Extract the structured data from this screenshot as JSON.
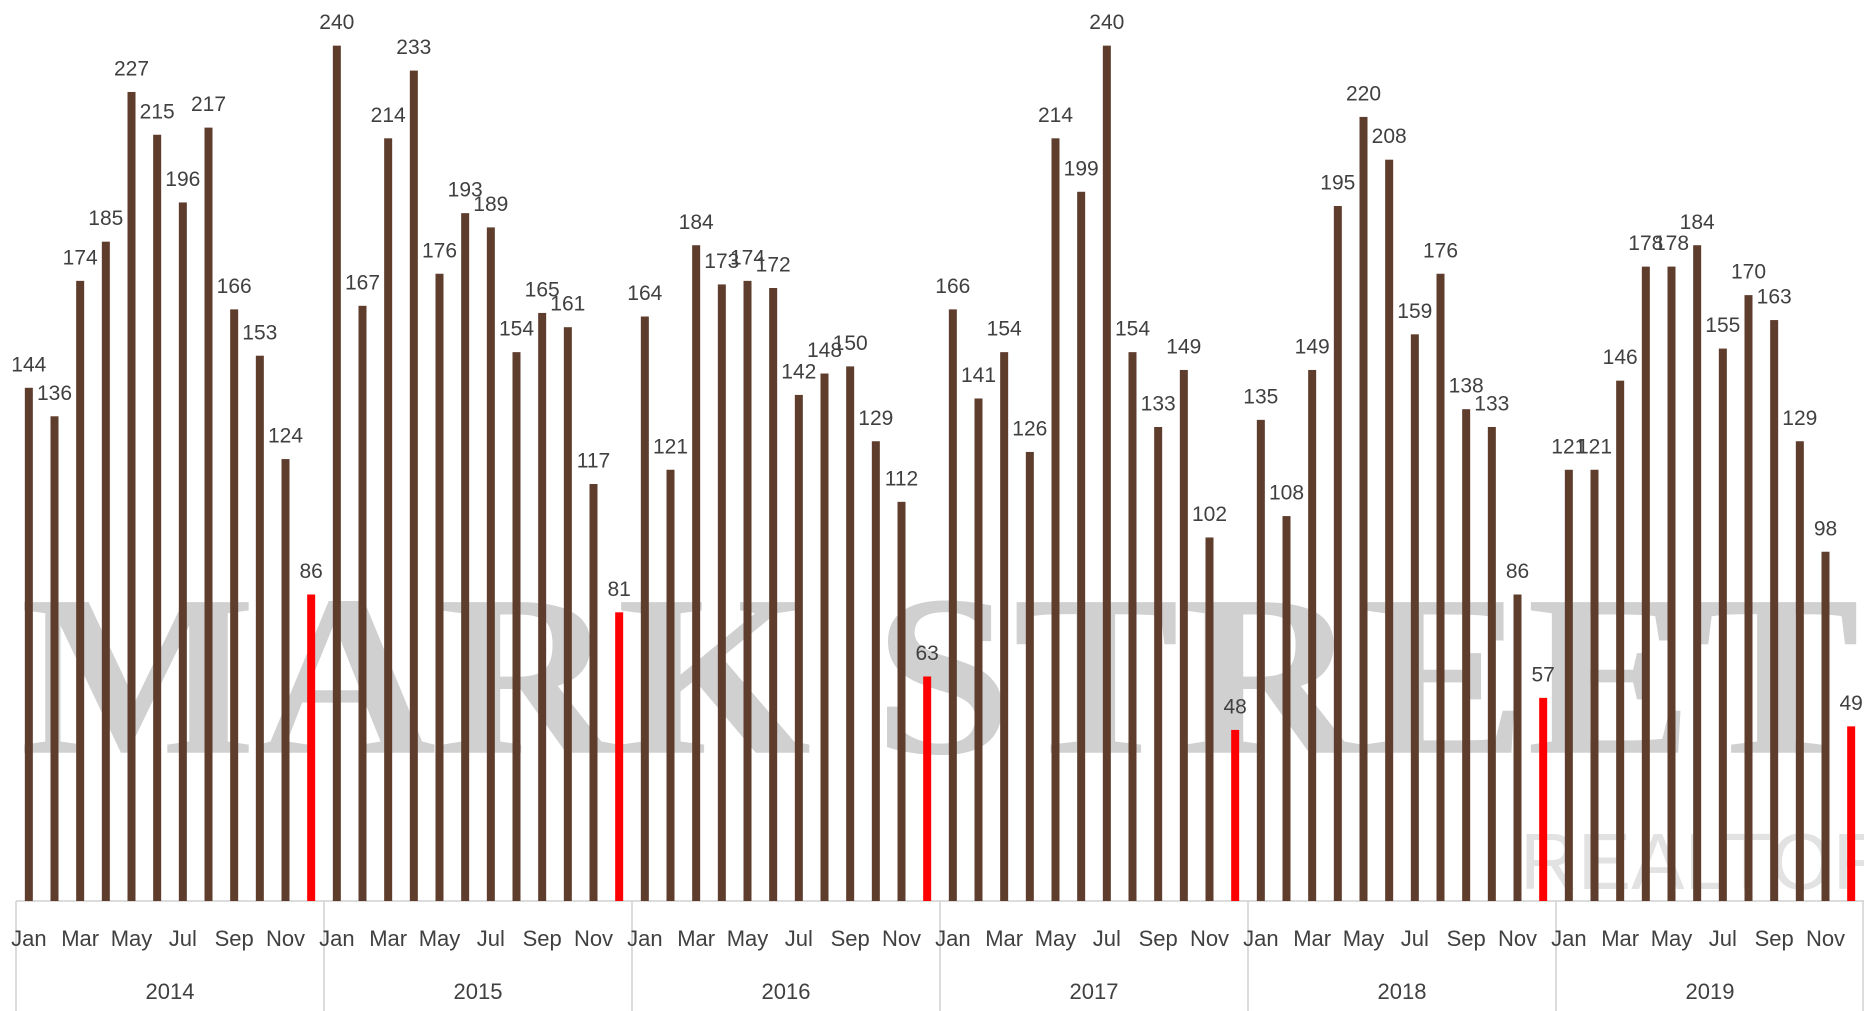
{
  "chart_data": {
    "type": "bar",
    "watermark": "MARK STREET",
    "watermark_subtitle": "REALTOR",
    "categories": [
      "Jan",
      null,
      "Mar",
      null,
      "May",
      null,
      "Jul",
      null,
      "Sep",
      null,
      "Nov",
      null,
      "Jan",
      null,
      "Mar",
      null,
      "May",
      null,
      "Jul",
      null,
      "Sep",
      null,
      "Nov",
      null,
      "Jan",
      null,
      "Mar",
      null,
      "May",
      null,
      "Jul",
      null,
      "Sep",
      null,
      "Nov",
      null,
      "Jan",
      null,
      "Mar",
      null,
      "May",
      null,
      "Jul",
      null,
      "Sep",
      null,
      "Nov",
      null,
      "Jan",
      null,
      "Mar",
      null,
      "May",
      null,
      "Jul",
      null,
      "Sep",
      null,
      "Nov",
      null,
      "Jan",
      null,
      "Mar",
      null,
      "May",
      null,
      "Jul",
      null,
      "Sep",
      null,
      "Nov",
      null
    ],
    "groups": [
      "2014",
      "2015",
      "2016",
      "2017",
      "2018",
      "2019"
    ],
    "values": [
      144,
      136,
      174,
      185,
      227,
      215,
      196,
      217,
      166,
      153,
      124,
      86,
      240,
      167,
      214,
      233,
      176,
      193,
      189,
      154,
      165,
      161,
      117,
      81,
      164,
      121,
      184,
      173,
      174,
      172,
      142,
      148,
      150,
      129,
      112,
      63,
      166,
      141,
      154,
      126,
      214,
      199,
      240,
      154,
      133,
      149,
      102,
      48,
      135,
      108,
      149,
      195,
      220,
      208,
      159,
      176,
      138,
      133,
      86,
      57,
      121,
      121,
      146,
      178,
      178,
      184,
      155,
      170,
      163,
      129,
      98,
      49
    ],
    "color": "#5e3d2d",
    "highlight_color": "#ff0000",
    "highlight_every": 12,
    "ylim": [
      0,
      250
    ],
    "grid": false
  }
}
